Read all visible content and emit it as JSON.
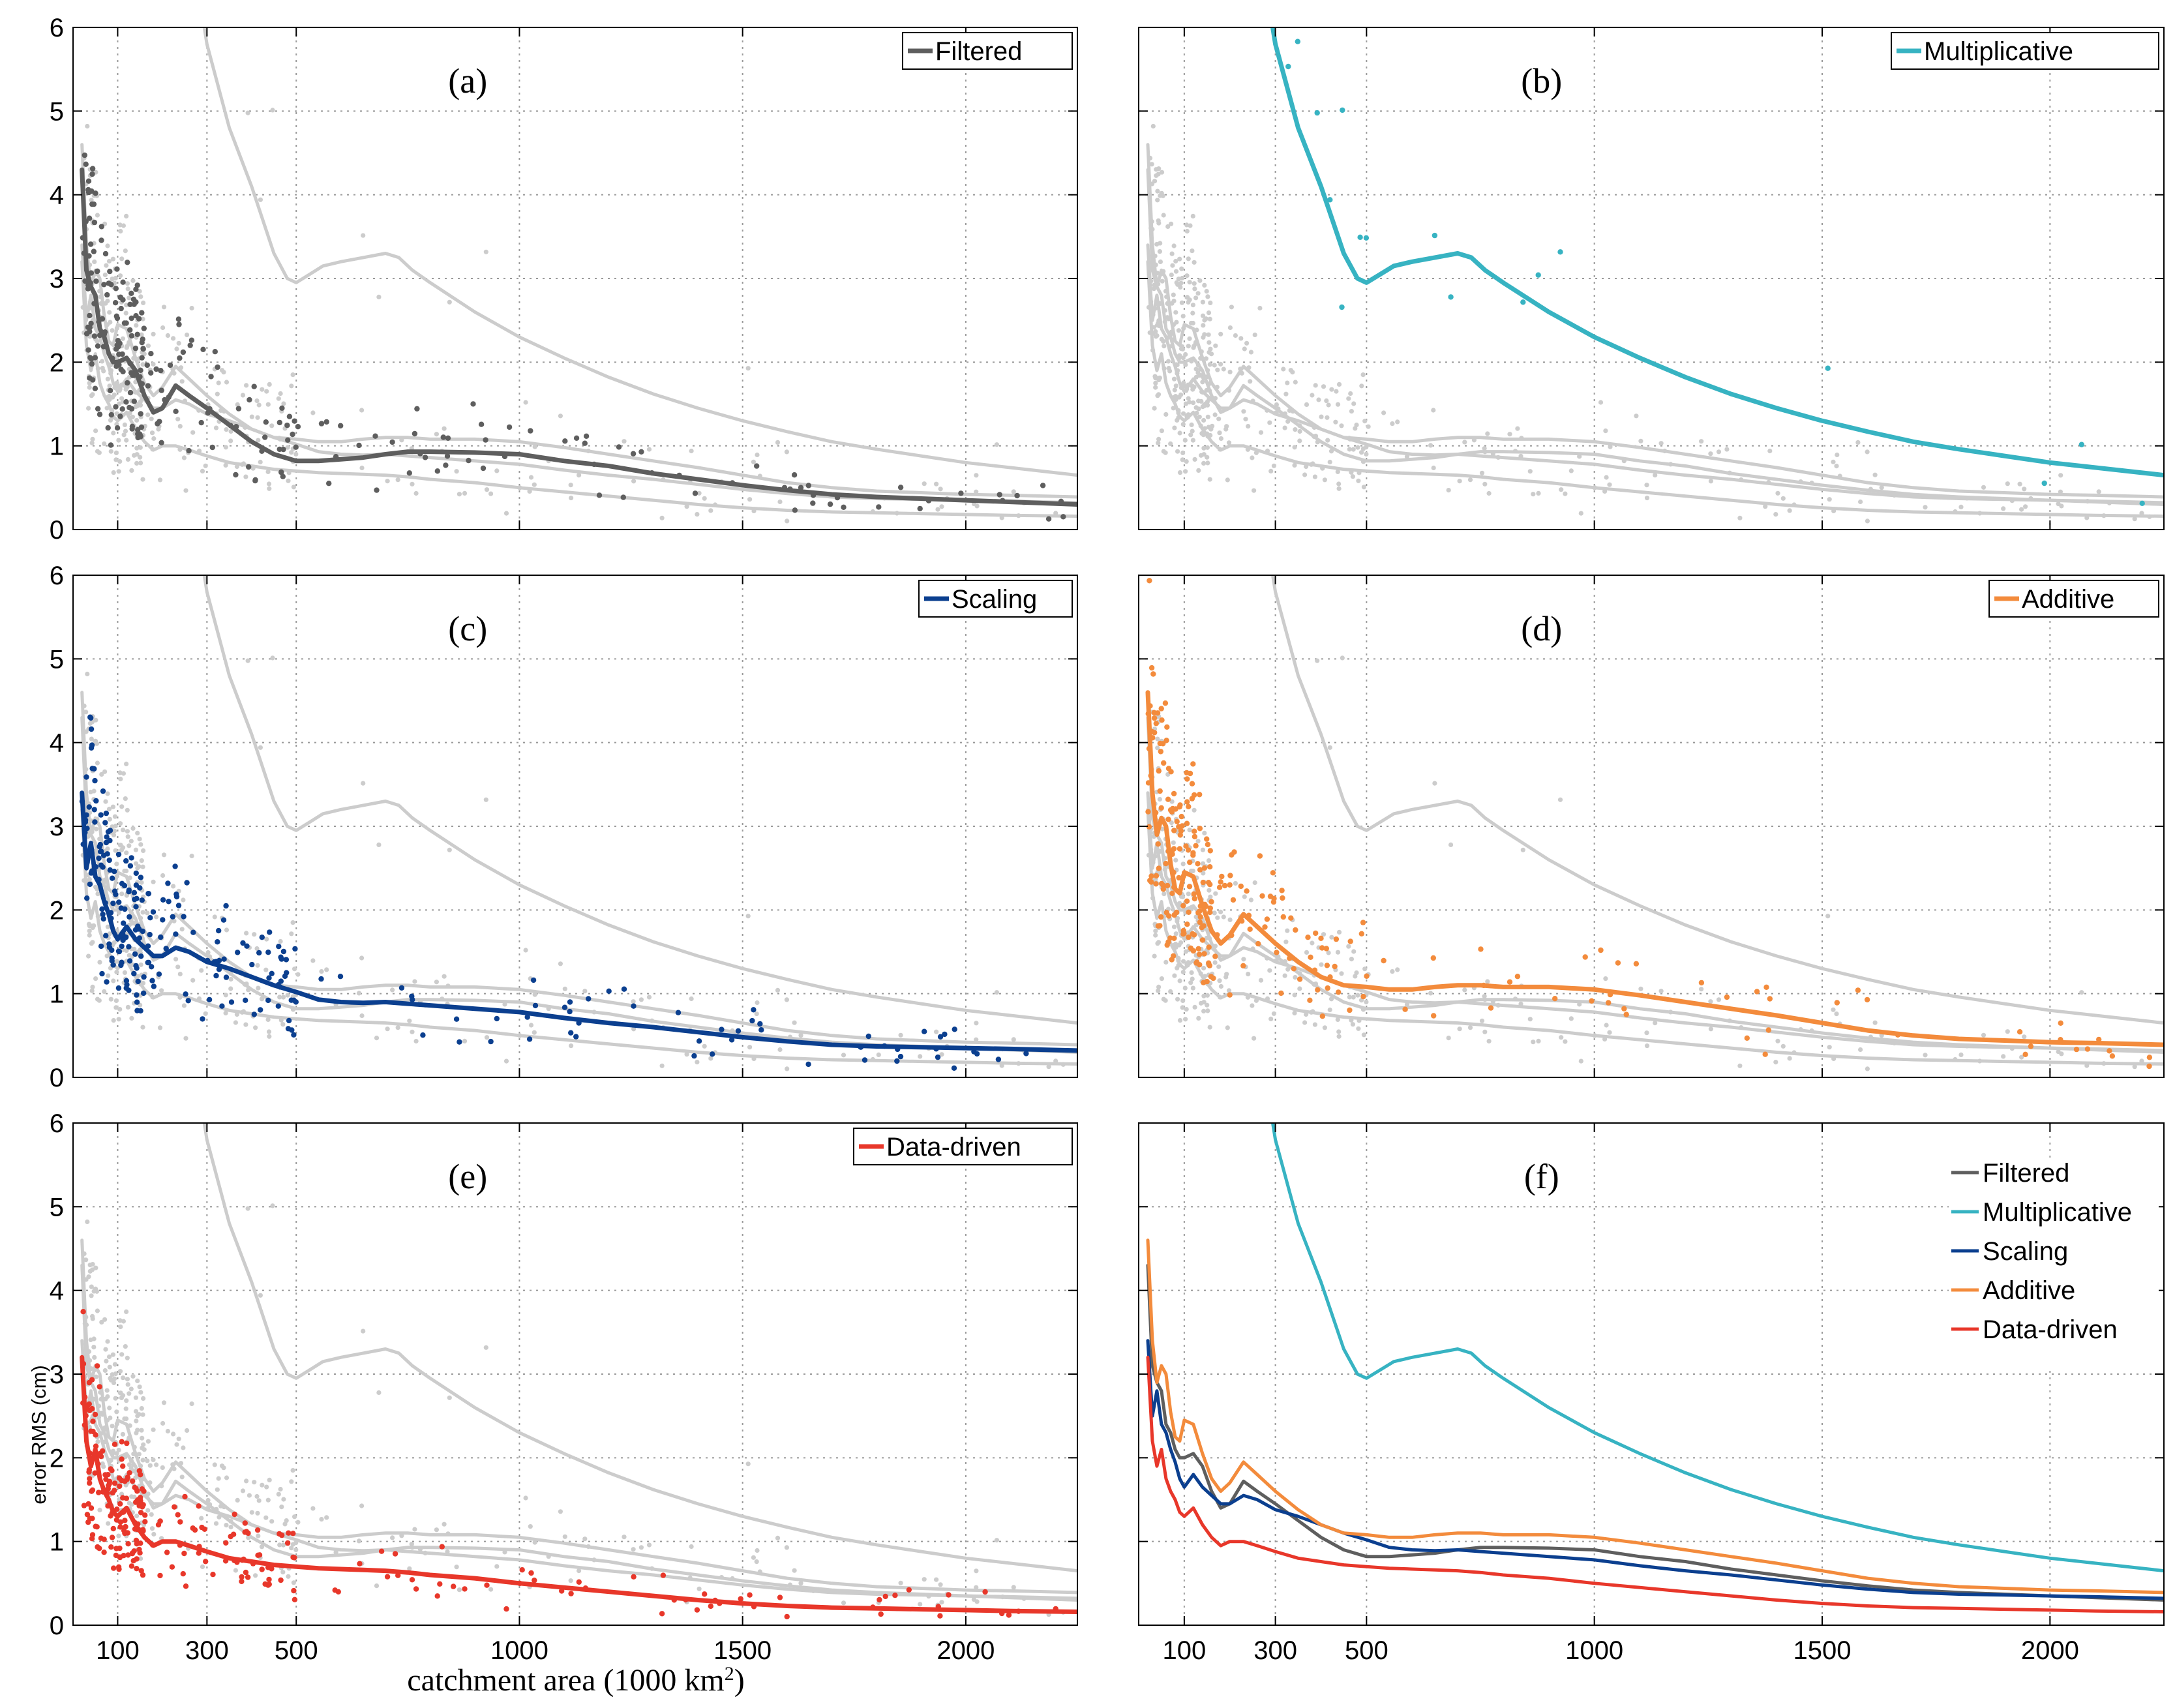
{
  "figure": {
    "ylabel": "error RMS (cm)",
    "xlabel_prefix": "catchment area (1000",
    "xlabel_unit": "km",
    "xlabel_exp": "2",
    "xlabel_suffix": ")"
  },
  "colors": {
    "Filtered": "#5e5e5e",
    "Multiplicative": "#37b3c2",
    "Scaling": "#0b3f8f",
    "Additive": "#f38b3c",
    "Data-driven": "#e8372a",
    "background": "#cccccc"
  },
  "chart_data": [
    {
      "type": "line",
      "panel": "(a)",
      "legend": [
        "Filtered"
      ],
      "highlight": "Filtered",
      "xticks": [
        100,
        300,
        500,
        1000,
        1500,
        2000
      ],
      "yticks": [
        0,
        1,
        2,
        3,
        4,
        5,
        6
      ],
      "xlim": [
        0,
        2250
      ],
      "ylim": [
        0,
        6
      ]
    },
    {
      "type": "line",
      "panel": "(b)",
      "legend": [
        "Multiplicative"
      ],
      "highlight": "Multiplicative",
      "xticks": [
        100,
        300,
        500,
        1000,
        1500,
        2000
      ],
      "yticks": [
        0,
        1,
        2,
        3,
        4,
        5,
        6
      ],
      "xlim": [
        0,
        2250
      ],
      "ylim": [
        0,
        6
      ]
    },
    {
      "type": "line",
      "panel": "(c)",
      "legend": [
        "Scaling"
      ],
      "highlight": "Scaling",
      "xticks": [
        100,
        300,
        500,
        1000,
        1500,
        2000
      ],
      "yticks": [
        0,
        1,
        2,
        3,
        4,
        5,
        6
      ],
      "xlim": [
        0,
        2250
      ],
      "ylim": [
        0,
        6
      ]
    },
    {
      "type": "line",
      "panel": "(d)",
      "legend": [
        "Additive"
      ],
      "highlight": "Additive",
      "xticks": [
        100,
        300,
        500,
        1000,
        1500,
        2000
      ],
      "yticks": [
        0,
        1,
        2,
        3,
        4,
        5,
        6
      ],
      "xlim": [
        0,
        2250
      ],
      "ylim": [
        0,
        6
      ]
    },
    {
      "type": "line",
      "panel": "(e)",
      "legend": [
        "Data-driven"
      ],
      "highlight": "Data-driven",
      "xticks": [
        100,
        300,
        500,
        1000,
        1500,
        2000
      ],
      "yticks": [
        0,
        1,
        2,
        3,
        4,
        5,
        6
      ],
      "xlim": [
        0,
        2250
      ],
      "ylim": [
        0,
        6
      ]
    },
    {
      "type": "line",
      "panel": "(f)",
      "legend": [
        "Filtered",
        "Multiplicative",
        "Scaling",
        "Additive",
        "Data-driven"
      ],
      "highlight": "all",
      "xticks": [
        100,
        300,
        500,
        1000,
        1500,
        2000
      ],
      "yticks": [
        0,
        1,
        2,
        3,
        4,
        5,
        6
      ],
      "xlim": [
        0,
        2250
      ],
      "ylim": [
        0,
        6
      ]
    }
  ],
  "series": [
    {
      "name": "Filtered",
      "x": [
        20,
        30,
        40,
        50,
        60,
        70,
        80,
        90,
        100,
        120,
        140,
        160,
        180,
        200,
        230,
        260,
        300,
        350,
        400,
        450,
        500,
        550,
        600,
        650,
        700,
        750,
        800,
        900,
        1000,
        1100,
        1200,
        1300,
        1400,
        1500,
        1600,
        1700,
        1800,
        1900,
        2000,
        2100,
        2250
      ],
      "y": [
        4.3,
        3.1,
        2.9,
        2.8,
        2.4,
        2.3,
        2.1,
        2.0,
        2.0,
        2.05,
        1.9,
        1.6,
        1.4,
        1.45,
        1.72,
        1.6,
        1.45,
        1.25,
        1.05,
        0.9,
        0.82,
        0.82,
        0.84,
        0.86,
        0.9,
        0.93,
        0.93,
        0.92,
        0.9,
        0.82,
        0.76,
        0.67,
        0.6,
        0.53,
        0.47,
        0.42,
        0.39,
        0.37,
        0.35,
        0.33,
        0.3
      ]
    },
    {
      "name": "Multiplicative",
      "x": [
        250,
        300,
        350,
        400,
        450,
        480,
        500,
        530,
        560,
        600,
        650,
        700,
        730,
        760,
        800,
        900,
        1000,
        1100,
        1200,
        1300,
        1400,
        1500,
        1600,
        1700,
        1800,
        1900,
        2000,
        2100,
        2250
      ],
      "y": [
        7.5,
        5.8,
        4.8,
        4.1,
        3.3,
        3.0,
        2.95,
        3.05,
        3.15,
        3.2,
        3.25,
        3.3,
        3.25,
        3.1,
        2.95,
        2.6,
        2.3,
        2.05,
        1.82,
        1.62,
        1.45,
        1.3,
        1.17,
        1.05,
        0.96,
        0.88,
        0.8,
        0.74,
        0.65
      ]
    },
    {
      "name": "Scaling",
      "x": [
        20,
        30,
        40,
        50,
        60,
        70,
        80,
        90,
        100,
        120,
        140,
        160,
        180,
        200,
        230,
        260,
        300,
        350,
        400,
        450,
        500,
        550,
        600,
        650,
        700,
        750,
        800,
        900,
        1000,
        1100,
        1200,
        1300,
        1400,
        1500,
        1600,
        1700,
        1800,
        1900,
        2000,
        2100,
        2250
      ],
      "y": [
        3.4,
        2.5,
        2.8,
        2.4,
        2.3,
        2.1,
        1.95,
        1.75,
        1.65,
        1.8,
        1.65,
        1.55,
        1.45,
        1.45,
        1.55,
        1.5,
        1.38,
        1.3,
        1.2,
        1.1,
        1.02,
        0.93,
        0.9,
        0.89,
        0.9,
        0.88,
        0.86,
        0.82,
        0.78,
        0.71,
        0.65,
        0.6,
        0.54,
        0.48,
        0.43,
        0.39,
        0.37,
        0.36,
        0.35,
        0.34,
        0.32
      ]
    },
    {
      "name": "Additive",
      "x": [
        20,
        30,
        40,
        50,
        60,
        70,
        80,
        90,
        100,
        120,
        140,
        160,
        180,
        200,
        230,
        260,
        300,
        350,
        400,
        450,
        500,
        550,
        600,
        650,
        700,
        750,
        800,
        900,
        1000,
        1100,
        1200,
        1300,
        1400,
        1500,
        1600,
        1700,
        1800,
        1900,
        2000,
        2100,
        2250
      ],
      "y": [
        4.6,
        3.4,
        2.9,
        3.1,
        3.0,
        2.55,
        2.25,
        2.2,
        2.45,
        2.4,
        2.05,
        1.75,
        1.6,
        1.7,
        1.95,
        1.8,
        1.6,
        1.38,
        1.2,
        1.1,
        1.08,
        1.05,
        1.05,
        1.08,
        1.1,
        1.1,
        1.08,
        1.08,
        1.05,
        0.98,
        0.9,
        0.82,
        0.74,
        0.65,
        0.56,
        0.5,
        0.46,
        0.44,
        0.42,
        0.41,
        0.39
      ]
    },
    {
      "name": "Data-driven",
      "x": [
        20,
        30,
        40,
        50,
        60,
        70,
        80,
        90,
        100,
        120,
        140,
        160,
        180,
        200,
        230,
        260,
        300,
        350,
        400,
        450,
        500,
        550,
        600,
        650,
        700,
        750,
        800,
        900,
        1000,
        1100,
        1200,
        1300,
        1400,
        1500,
        1600,
        1700,
        1800,
        1900,
        2000,
        2100,
        2250
      ],
      "y": [
        3.2,
        2.2,
        1.9,
        2.1,
        1.75,
        1.6,
        1.5,
        1.35,
        1.3,
        1.4,
        1.2,
        1.05,
        0.95,
        1.0,
        1.0,
        0.95,
        0.88,
        0.8,
        0.76,
        0.72,
        0.7,
        0.68,
        0.67,
        0.66,
        0.65,
        0.63,
        0.6,
        0.56,
        0.5,
        0.45,
        0.4,
        0.35,
        0.3,
        0.26,
        0.23,
        0.21,
        0.2,
        0.19,
        0.18,
        0.17,
        0.16
      ]
    }
  ]
}
